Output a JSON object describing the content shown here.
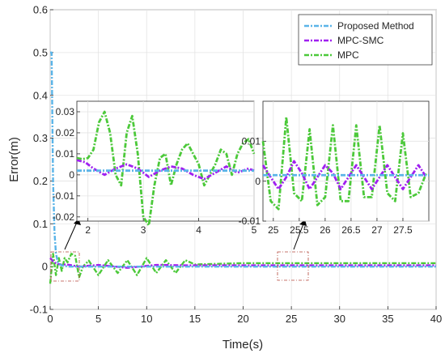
{
  "chart_data": [
    {
      "type": "line",
      "title": "",
      "xlabel": "Time(s)",
      "ylabel": "Error(m)",
      "xlim": [
        0,
        40
      ],
      "ylim": [
        -0.1,
        0.6
      ],
      "xticks": [
        "0",
        "5",
        "10",
        "15",
        "20",
        "25",
        "30",
        "35",
        "40"
      ],
      "yticks": [
        "-0.1",
        "0",
        "0.1",
        "0.2",
        "0.3",
        "0.4",
        "0.5",
        "0.6"
      ],
      "grid": true,
      "legend_position": "top-right",
      "series": [
        {
          "name": "Proposed Method",
          "color": "#5ab4e8",
          "style": "dash-dot",
          "x": [
            0,
            0.15,
            0.3,
            0.45,
            0.6,
            0.8,
            1.0,
            1.3,
            1.6,
            2,
            5,
            10,
            14,
            20,
            30,
            40
          ],
          "y": [
            0.5,
            0.5,
            0.2,
            0.08,
            0.03,
            0.01,
            0.005,
            0.002,
            0.001,
            0,
            0,
            0,
            0,
            0,
            0,
            0
          ]
        },
        {
          "name": "MPC-SMC",
          "color": "#a020f0",
          "style": "dash-dot",
          "x": [
            0,
            0.4,
            0.8,
            1.2,
            1.6,
            2,
            3,
            5,
            8,
            11,
            14,
            20,
            30,
            40
          ],
          "y": [
            0.02,
            0.01,
            0.006,
            0.004,
            0.005,
            0.004,
            0.0,
            0.004,
            -0.003,
            0.004,
            0.003,
            0.003,
            0.003,
            0.003
          ]
        },
        {
          "name": "MPC",
          "color": "#4cc93a",
          "style": "dash-dot",
          "x": [
            0,
            0.3,
            0.6,
            0.9,
            1.2,
            1.5,
            1.8,
            2.2,
            2.6,
            3.0,
            3.4,
            4,
            5,
            6,
            7,
            8,
            9,
            10,
            11,
            12,
            13,
            14,
            15,
            20,
            25,
            30,
            35,
            40
          ],
          "y": [
            -0.04,
            0.03,
            -0.02,
            0.02,
            -0.01,
            0.02,
            0.01,
            0.03,
            0.025,
            -0.025,
            0.0,
            0.014,
            -0.02,
            0.015,
            -0.015,
            0.015,
            -0.02,
            0.02,
            -0.015,
            0.015,
            -0.015,
            0.015,
            0.005,
            0.008,
            0.008,
            0.008,
            0.008,
            0.008
          ]
        }
      ]
    },
    {
      "type": "line",
      "title": "",
      "xlabel": "",
      "ylabel": "",
      "xlim": [
        1.8,
        5
      ],
      "ylim": [
        -0.022,
        0.035
      ],
      "xticks": [
        "2",
        "3",
        "4",
        "5"
      ],
      "yticks": [
        "-0.02",
        "-0.01",
        "0",
        "0.01",
        "0.02",
        "0.03"
      ],
      "grid": true,
      "series": [
        {
          "name": "Proposed Method",
          "color": "#5ab4e8",
          "style": "dash-dot",
          "x": [
            1.8,
            5
          ],
          "y": [
            0.002,
            0.002
          ]
        },
        {
          "name": "MPC-SMC",
          "color": "#a020f0",
          "style": "dash-dot",
          "x": [
            1.8,
            1.95,
            2.1,
            2.3,
            2.5,
            2.7,
            2.9,
            3.1,
            3.3,
            3.5,
            3.7,
            3.9,
            4.1,
            4.3,
            4.5,
            4.7,
            4.9,
            5.0
          ],
          "y": [
            0.007,
            0.006,
            0.003,
            0.0,
            0.003,
            0.005,
            0.003,
            -0.001,
            0.002,
            0.004,
            0.003,
            0.0,
            -0.002,
            0.001,
            0.004,
            0.001,
            0.003,
            0.002
          ]
        },
        {
          "name": "MPC",
          "color": "#4cc93a",
          "style": "dash-dot",
          "x": [
            1.8,
            1.9,
            2.0,
            2.1,
            2.2,
            2.3,
            2.4,
            2.5,
            2.6,
            2.7,
            2.8,
            2.9,
            3.0,
            3.1,
            3.2,
            3.3,
            3.4,
            3.5,
            3.6,
            3.7,
            3.8,
            3.9,
            4.0,
            4.1,
            4.2,
            4.3,
            4.4,
            4.5,
            4.6,
            4.7,
            4.8,
            4.9,
            5.0
          ],
          "y": [
            0.008,
            0.0075,
            0.008,
            0.012,
            0.025,
            0.03,
            0.02,
            0.0,
            -0.005,
            0.02,
            0.028,
            0.01,
            -0.02,
            -0.024,
            -0.005,
            0.008,
            0.01,
            -0.005,
            0.005,
            0.012,
            0.015,
            0.01,
            0.005,
            -0.005,
            0.0,
            0.005,
            0.012,
            0.01,
            0.0,
            0.01,
            0.015,
            0.017,
            0.01
          ]
        }
      ]
    },
    {
      "type": "line",
      "title": "",
      "xlabel": "",
      "ylabel": "",
      "xlim": [
        24.8,
        28
      ],
      "ylim": [
        -0.01,
        0.02
      ],
      "xticks": [
        "25",
        "25.5",
        "26",
        "26.5",
        "27",
        "27.5"
      ],
      "yticks": [
        "-0.01",
        "0",
        "0.01"
      ],
      "grid": true,
      "series": [
        {
          "name": "Proposed Method",
          "color": "#5ab4e8",
          "style": "dash-dot",
          "x": [
            24.8,
            28
          ],
          "y": [
            0.0015,
            0.0015
          ]
        },
        {
          "name": "MPC-SMC",
          "color": "#a020f0",
          "style": "dash-dot",
          "x": [
            24.8,
            24.95,
            25.1,
            25.25,
            25.4,
            25.55,
            25.7,
            25.85,
            26.0,
            26.15,
            26.3,
            26.45,
            26.6,
            26.75,
            26.9,
            27.05,
            27.2,
            27.35,
            27.5,
            27.65,
            27.8,
            27.95
          ],
          "y": [
            0.004,
            0.001,
            -0.002,
            0.001,
            0.005,
            0.002,
            -0.002,
            0.001,
            0.004,
            0.002,
            -0.002,
            0.001,
            0.004,
            0.001,
            -0.002,
            0.001,
            0.004,
            0.001,
            -0.002,
            0.001,
            0.004,
            0.001
          ]
        },
        {
          "name": "MPC",
          "color": "#4cc93a",
          "style": "dash-dot",
          "x": [
            24.8,
            24.95,
            25.1,
            25.25,
            25.4,
            25.55,
            25.7,
            25.85,
            26.0,
            26.15,
            26.3,
            26.45,
            26.6,
            26.75,
            26.9,
            27.05,
            27.2,
            27.35,
            27.5,
            27.65,
            27.8,
            27.95
          ],
          "y": [
            0.01,
            -0.005,
            -0.007,
            0.016,
            -0.003,
            -0.005,
            0.013,
            -0.006,
            -0.004,
            0.014,
            -0.005,
            -0.005,
            0.014,
            -0.004,
            -0.004,
            0.014,
            -0.003,
            -0.005,
            0.012,
            -0.004,
            -0.003,
            0.002
          ]
        }
      ]
    }
  ]
}
